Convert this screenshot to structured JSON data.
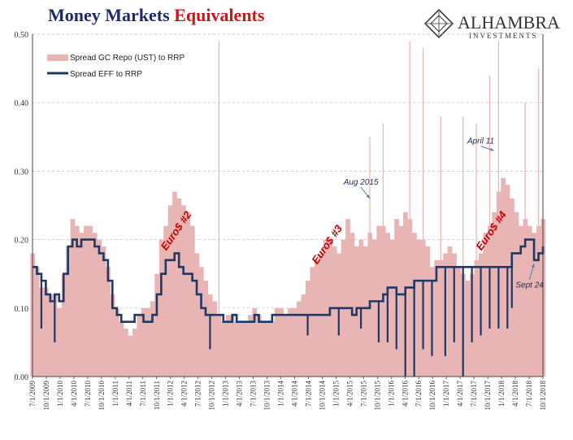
{
  "title": {
    "part1": "Money Markets",
    "part2": "Equivalents"
  },
  "brand": {
    "name": "ALHAMBRA",
    "sub": "INVESTMENTS"
  },
  "chart_data": {
    "type": "area",
    "ylim": [
      0.0,
      0.5
    ],
    "yticks": [
      "0.00",
      "0.10",
      "0.20",
      "0.30",
      "0.40",
      "0.50"
    ],
    "xticks": [
      "7/1/2009",
      "10/1/2009",
      "1/1/2010",
      "4/1/2010",
      "7/1/2010",
      "10/1/2010",
      "1/1/2011",
      "4/1/2011",
      "7/1/2011",
      "10/1/2011",
      "1/1/2012",
      "4/1/2012",
      "7/1/2012",
      "10/1/2012",
      "1/1/2013",
      "4/1/2013",
      "7/1/2013",
      "10/1/2013",
      "1/1/2014",
      "4/1/2014",
      "7/1/2014",
      "10/1/2014",
      "1/1/2015",
      "4/1/2015",
      "7/1/2015",
      "10/1/2015",
      "1/1/2016",
      "4/1/2016",
      "7/1/2016",
      "10/1/2016",
      "1/1/2017",
      "4/1/2017",
      "7/1/2017",
      "10/1/2017",
      "1/1/2018",
      "4/1/2018",
      "7/1/2018",
      "10/1/2018"
    ],
    "xlim_months": [
      0,
      115
    ],
    "grid": "horizontal-dashed",
    "legend_position": "top-left",
    "series": [
      {
        "name": "Spread GC Repo (UST) to RRP",
        "style": "area",
        "color": "#e8b4b4",
        "x": [
          0,
          1,
          2,
          3,
          4,
          5,
          6,
          7,
          8,
          9,
          10,
          11,
          12,
          13,
          14,
          15,
          16,
          17,
          18,
          19,
          20,
          21,
          22,
          23,
          24,
          25,
          26,
          27,
          28,
          29,
          30,
          31,
          32,
          33,
          34,
          35,
          36,
          37,
          38,
          39,
          40,
          41,
          42,
          43,
          44,
          45,
          46,
          47,
          48,
          49,
          50,
          51,
          52,
          53,
          54,
          55,
          56,
          57,
          58,
          59,
          60,
          61,
          62,
          63,
          64,
          65,
          66,
          67,
          68,
          69,
          70,
          71,
          72,
          73,
          74,
          75,
          76,
          77,
          78,
          79,
          80,
          81,
          82,
          83,
          84,
          85,
          86,
          87,
          88,
          89,
          90,
          91,
          92,
          93,
          94,
          95,
          96,
          97,
          98,
          99,
          100,
          101,
          102,
          103,
          104,
          105,
          106,
          107,
          108,
          109,
          110,
          111,
          112,
          113,
          114,
          115
        ],
        "values": [
          0.18,
          0.16,
          0.13,
          0.13,
          0.12,
          0.12,
          0.1,
          0.15,
          0.19,
          0.23,
          0.22,
          0.21,
          0.22,
          0.22,
          0.21,
          0.2,
          0.19,
          0.16,
          0.12,
          0.1,
          0.08,
          0.07,
          0.06,
          0.07,
          0.09,
          0.1,
          0.1,
          0.11,
          0.15,
          0.2,
          0.22,
          0.25,
          0.27,
          0.26,
          0.25,
          0.24,
          0.22,
          0.18,
          0.16,
          0.14,
          0.12,
          0.11,
          0.09,
          0.08,
          0.09,
          0.09,
          0.08,
          0.08,
          0.08,
          0.09,
          0.1,
          0.09,
          0.08,
          0.08,
          0.08,
          0.1,
          0.1,
          0.09,
          0.1,
          0.1,
          0.11,
          0.12,
          0.14,
          0.16,
          0.17,
          0.18,
          0.2,
          0.2,
          0.19,
          0.18,
          0.2,
          0.23,
          0.21,
          0.19,
          0.2,
          0.19,
          0.21,
          0.2,
          0.22,
          0.22,
          0.21,
          0.2,
          0.23,
          0.22,
          0.24,
          0.23,
          0.21,
          0.2,
          0.2,
          0.19,
          0.16,
          0.17,
          0.17,
          0.18,
          0.19,
          0.18,
          0.16,
          0.15,
          0.14,
          0.15,
          0.17,
          0.18,
          0.21,
          0.22,
          0.24,
          0.27,
          0.29,
          0.28,
          0.26,
          0.24,
          0.22,
          0.23,
          0.22,
          0.21,
          0.22,
          0.23
        ],
        "spikes": [
          {
            "x": 42,
            "value": 0.49
          },
          {
            "x": 76,
            "value": 0.35
          },
          {
            "x": 79,
            "value": 0.37
          },
          {
            "x": 85,
            "value": 0.49
          },
          {
            "x": 88,
            "value": 0.48
          },
          {
            "x": 92,
            "value": 0.38
          },
          {
            "x": 97,
            "value": 0.38
          },
          {
            "x": 100,
            "value": 0.37
          },
          {
            "x": 103,
            "value": 0.44
          },
          {
            "x": 105,
            "value": 0.49
          },
          {
            "x": 111,
            "value": 0.4
          },
          {
            "x": 114,
            "value": 0.45
          }
        ]
      },
      {
        "name": "Spread EFF to RRP",
        "style": "line",
        "color": "#1f3864",
        "x": [
          0,
          1,
          2,
          3,
          4,
          5,
          6,
          7,
          8,
          9,
          10,
          11,
          12,
          13,
          14,
          15,
          16,
          17,
          18,
          19,
          20,
          21,
          22,
          23,
          24,
          25,
          26,
          27,
          28,
          29,
          30,
          31,
          32,
          33,
          34,
          35,
          36,
          37,
          38,
          39,
          40,
          41,
          42,
          43,
          44,
          45,
          46,
          47,
          48,
          49,
          50,
          51,
          52,
          53,
          54,
          55,
          56,
          57,
          58,
          59,
          60,
          61,
          62,
          63,
          64,
          65,
          66,
          67,
          68,
          69,
          70,
          71,
          72,
          73,
          74,
          75,
          76,
          77,
          78,
          79,
          80,
          81,
          82,
          83,
          84,
          85,
          86,
          87,
          88,
          89,
          90,
          91,
          92,
          93,
          94,
          95,
          96,
          97,
          98,
          99,
          100,
          101,
          102,
          103,
          104,
          105,
          106,
          107,
          108,
          109,
          110,
          111,
          112,
          113,
          114,
          115
        ],
        "values": [
          0.16,
          0.15,
          0.14,
          0.12,
          0.11,
          0.12,
          0.11,
          0.15,
          0.19,
          0.2,
          0.19,
          0.2,
          0.2,
          0.2,
          0.19,
          0.18,
          0.17,
          0.14,
          0.1,
          0.09,
          0.08,
          0.08,
          0.08,
          0.09,
          0.09,
          0.08,
          0.08,
          0.09,
          0.12,
          0.15,
          0.17,
          0.17,
          0.18,
          0.16,
          0.15,
          0.15,
          0.14,
          0.12,
          0.1,
          0.09,
          0.09,
          0.09,
          0.09,
          0.08,
          0.08,
          0.09,
          0.08,
          0.08,
          0.08,
          0.08,
          0.09,
          0.08,
          0.08,
          0.08,
          0.09,
          0.09,
          0.09,
          0.09,
          0.09,
          0.09,
          0.09,
          0.09,
          0.09,
          0.09,
          0.09,
          0.09,
          0.09,
          0.1,
          0.1,
          0.1,
          0.1,
          0.1,
          0.09,
          0.1,
          0.1,
          0.1,
          0.11,
          0.11,
          0.11,
          0.12,
          0.13,
          0.13,
          0.12,
          0.12,
          0.13,
          0.13,
          0.14,
          0.14,
          0.14,
          0.14,
          0.14,
          0.16,
          0.16,
          0.16,
          0.16,
          0.16,
          0.16,
          0.16,
          0.16,
          0.16,
          0.16,
          0.16,
          0.16,
          0.16,
          0.16,
          0.16,
          0.16,
          0.16,
          0.18,
          0.18,
          0.19,
          0.2,
          0.2,
          0.17,
          0.18,
          0.19
        ],
        "dips": [
          {
            "x": 2,
            "value": 0.07
          },
          {
            "x": 5,
            "value": 0.05
          },
          {
            "x": 40,
            "value": 0.04
          },
          {
            "x": 62,
            "value": 0.06
          },
          {
            "x": 69,
            "value": 0.06
          },
          {
            "x": 74,
            "value": 0.07
          },
          {
            "x": 78,
            "value": 0.05
          },
          {
            "x": 80,
            "value": 0.05
          },
          {
            "x": 82,
            "value": 0.04
          },
          {
            "x": 84,
            "value": 0.0
          },
          {
            "x": 86,
            "value": 0.0
          },
          {
            "x": 88,
            "value": 0.04
          },
          {
            "x": 90,
            "value": 0.03
          },
          {
            "x": 93,
            "value": 0.03
          },
          {
            "x": 95,
            "value": 0.05
          },
          {
            "x": 97,
            "value": 0.0
          },
          {
            "x": 99,
            "value": 0.05
          },
          {
            "x": 101,
            "value": 0.06
          },
          {
            "x": 103,
            "value": 0.07
          },
          {
            "x": 105,
            "value": 0.07
          },
          {
            "x": 107,
            "value": 0.07
          },
          {
            "x": 108,
            "value": 0.1
          }
        ]
      }
    ],
    "annotations": [
      {
        "text": "Euro$ #2",
        "kind": "era",
        "x": 33,
        "y": 0.21
      },
      {
        "text": "Euro$ #3",
        "kind": "era",
        "x": 67,
        "y": 0.19
      },
      {
        "text": "Euro$ #4",
        "kind": "era",
        "x": 104,
        "y": 0.21
      },
      {
        "text": "Aug 2015",
        "kind": "callout",
        "x": 74,
        "y": 0.28,
        "target_x": 76,
        "target_y": 0.26
      },
      {
        "text": "April 11",
        "kind": "callout",
        "x": 101,
        "y": 0.34,
        "target_x": 104,
        "target_y": 0.33
      },
      {
        "text": "Sept 24",
        "kind": "callout",
        "x": 112,
        "y": 0.13,
        "target_x": 113,
        "target_y": 0.165
      }
    ]
  }
}
